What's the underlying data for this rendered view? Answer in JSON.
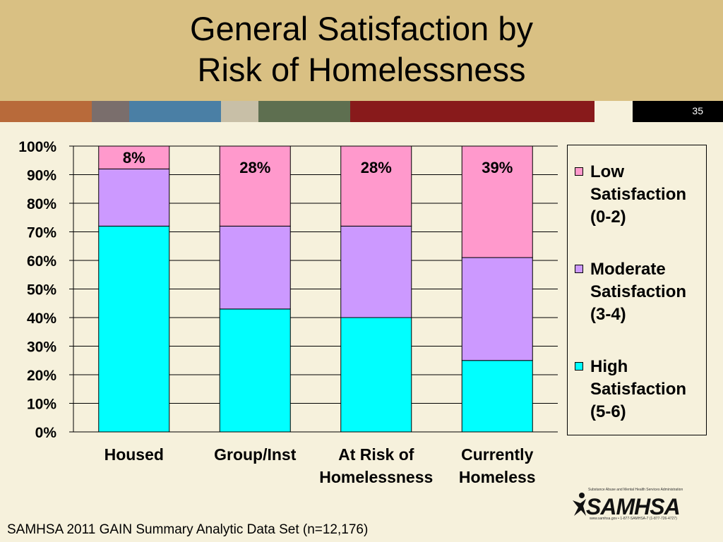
{
  "slide": {
    "title_line1": "General Satisfaction by",
    "title_line2": "Risk of Homelessness",
    "slide_number": "35",
    "source": "SAMHSA 2011 GAIN Summary Analytic Data Set (n=12,176)",
    "logo": {
      "word": "SAMHSA",
      "tagline": "Substance Abuse and Mental Health Services Administration",
      "contact": "www.samhsa.gov • 1-877-SAMHSA-7 (1-877-726-4727)"
    },
    "band_colors": [
      "#b86a3a",
      "#7a6e6c",
      "#4a7fa5",
      "#c8bfa7",
      "#5e6f50",
      "#881a1b",
      "#f6f1dc"
    ]
  },
  "chart_data": {
    "type": "bar",
    "stacked": true,
    "categories": [
      [
        "Housed"
      ],
      [
        "Group/Inst"
      ],
      [
        "At Risk of",
        "Homelessness"
      ],
      [
        "Currently",
        "Homeless"
      ]
    ],
    "series": [
      {
        "name": "High Satisfaction (5-6)",
        "legend_lines": [
          "High",
          "Satisfaction",
          "(5-6)"
        ],
        "color": "#00ffff",
        "values": [
          72,
          43,
          40,
          25
        ]
      },
      {
        "name": "Moderate Satisfaction (3-4)",
        "legend_lines": [
          "Moderate",
          "Satisfaction",
          "(3-4)"
        ],
        "color": "#cc99ff",
        "values": [
          20,
          29,
          32,
          36
        ]
      },
      {
        "name": "Low Satisfaction (0-2)",
        "legend_lines": [
          "Low",
          "Satisfaction",
          "(0-2)"
        ],
        "color": "#ff99cc",
        "values": [
          8,
          28,
          28,
          39
        ]
      }
    ],
    "data_labels": [
      "8%",
      "28%",
      "28%",
      "39%"
    ],
    "y_ticks": [
      "0%",
      "10%",
      "20%",
      "30%",
      "40%",
      "50%",
      "60%",
      "70%",
      "80%",
      "90%",
      "100%"
    ],
    "ylim": [
      0,
      100
    ],
    "grid": true,
    "legend_position": "right"
  }
}
